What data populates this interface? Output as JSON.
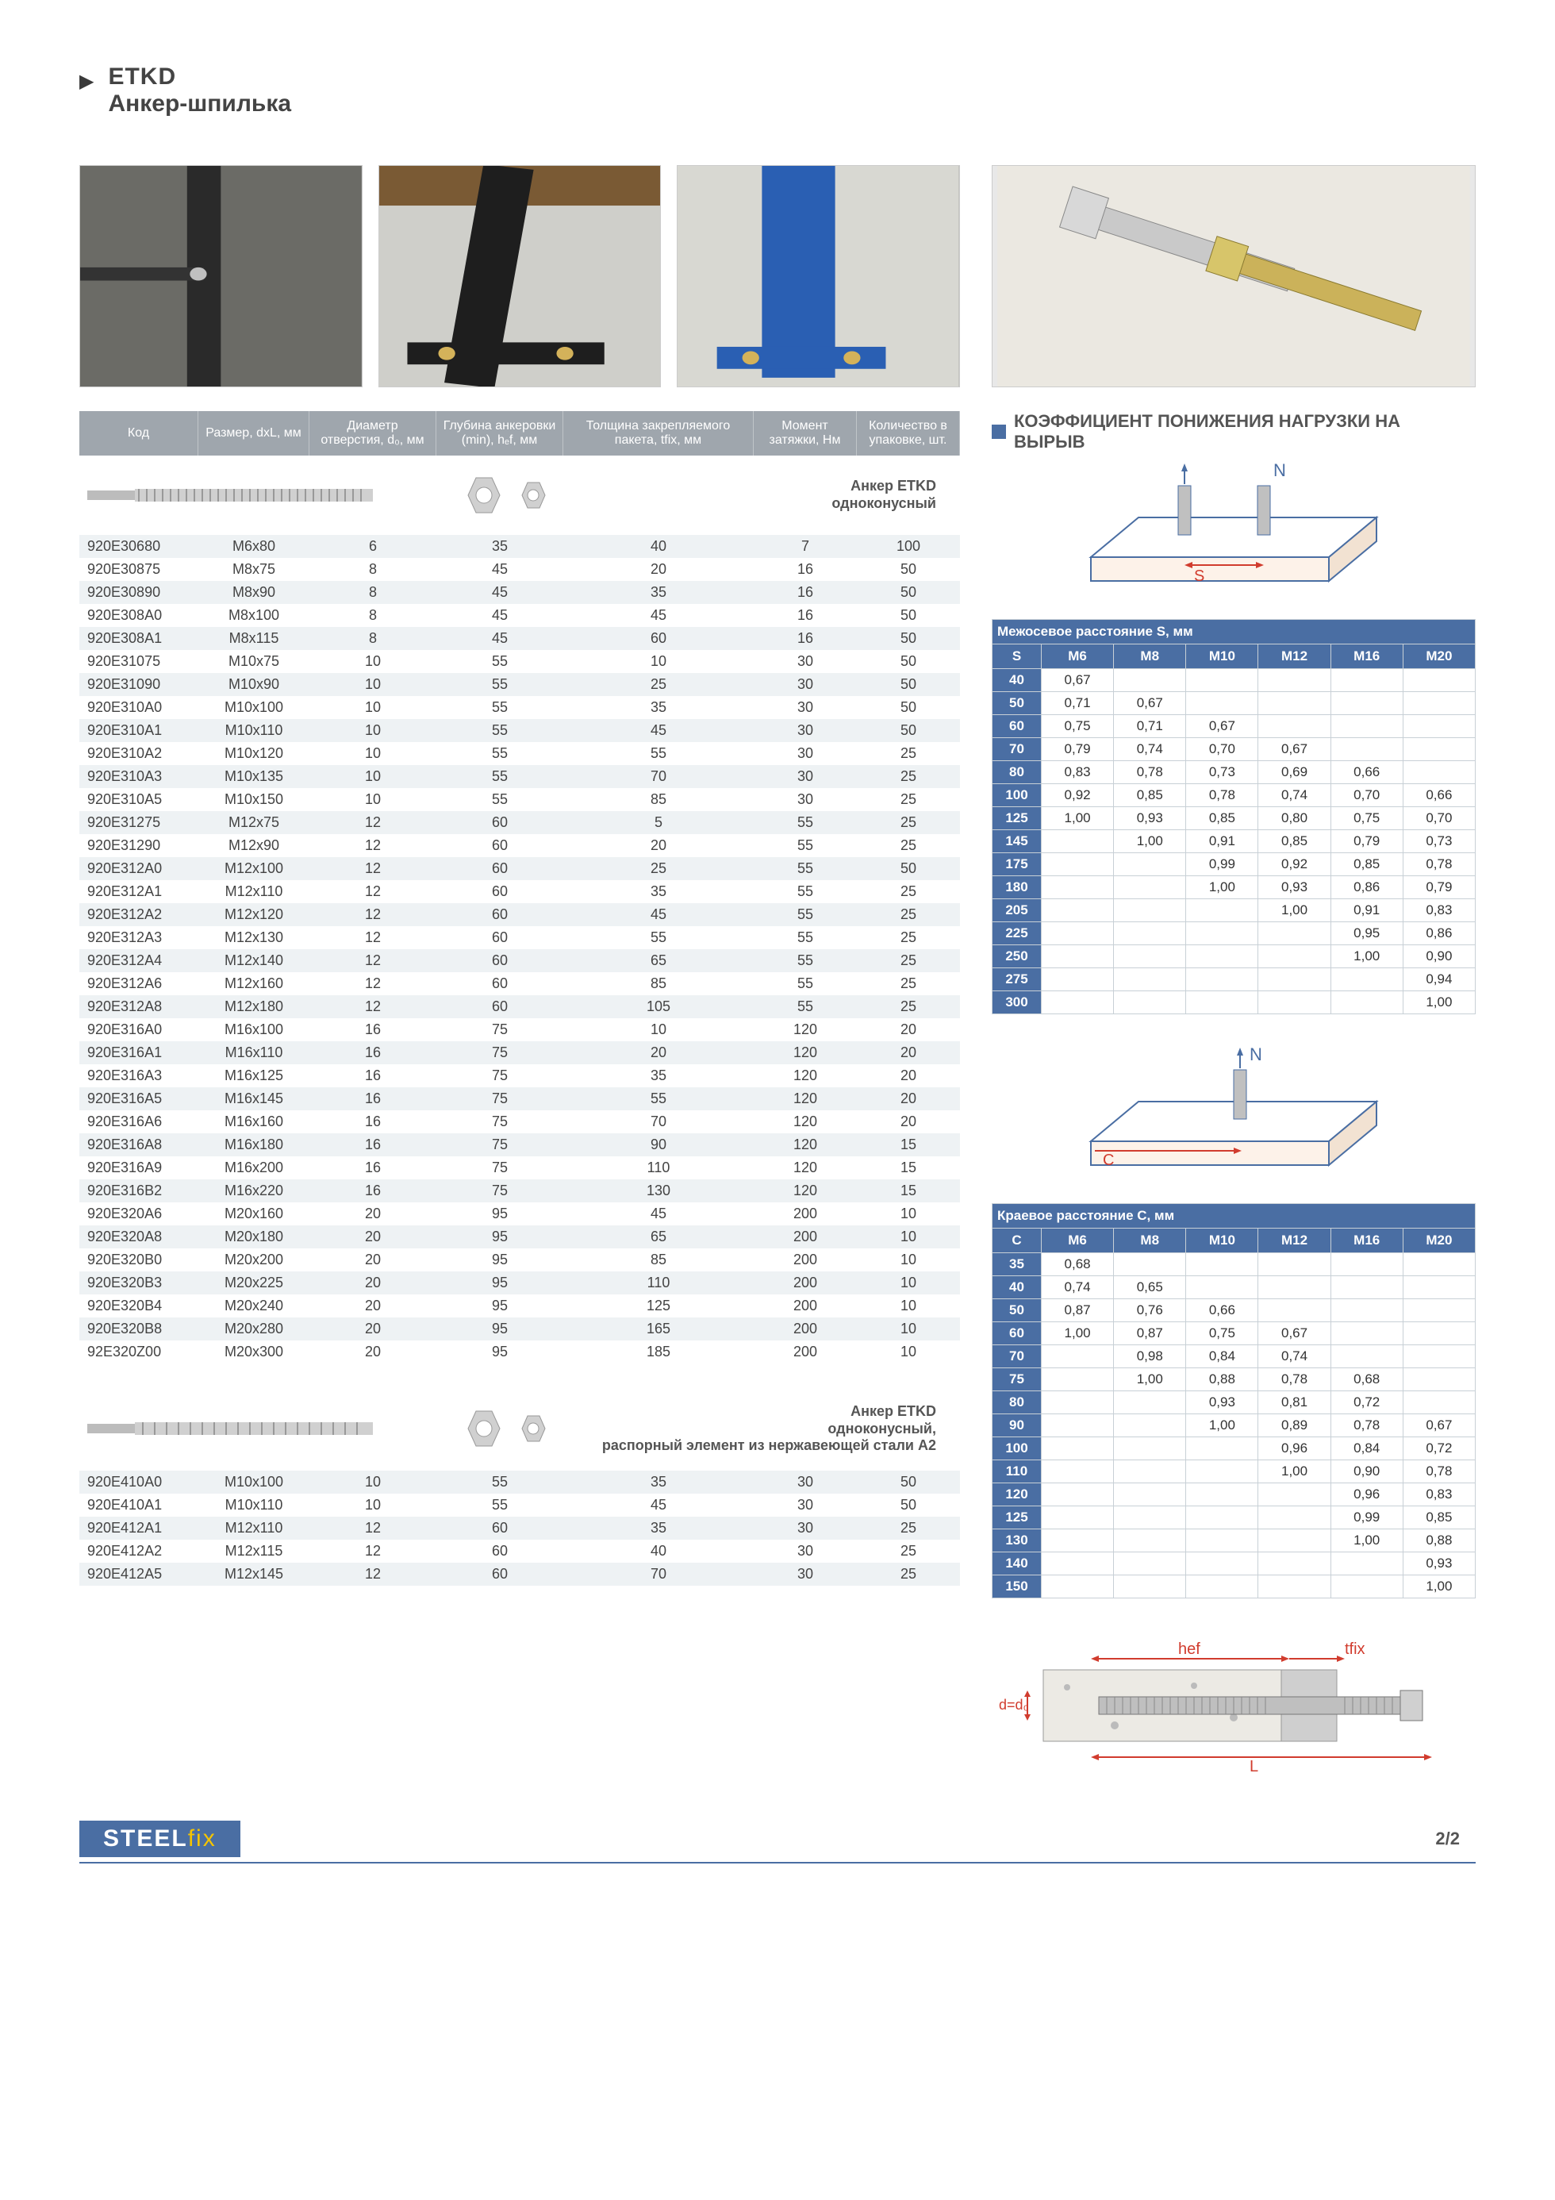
{
  "header": {
    "code": "ETKD",
    "name": "Анкер-шпилька"
  },
  "main_columns": [
    "Код",
    "Размер, dxL, мм",
    "Диаметр отверстия, d₀, мм",
    "Глубина анкеровки (min), hₑf, мм",
    "Толщина закрепляемого пакета, tfix, мм",
    "Момент затяжки, Нм",
    "Количество в упаковке, шт."
  ],
  "anchor_label_1": {
    "line1": "Анкер ETKD",
    "line2": "одноконусный"
  },
  "anchor_label_2": {
    "line1": "Анкер ETKD",
    "line2": "одноконусный,",
    "line3": "распорный элемент из нержавеющей стали A2"
  },
  "rows1": [
    [
      "920E30680",
      "M6x80",
      "6",
      "35",
      "40",
      "7",
      "100"
    ],
    [
      "920E30875",
      "M8x75",
      "8",
      "45",
      "20",
      "16",
      "50"
    ],
    [
      "920E30890",
      "M8x90",
      "8",
      "45",
      "35",
      "16",
      "50"
    ],
    [
      "920E308A0",
      "M8x100",
      "8",
      "45",
      "45",
      "16",
      "50"
    ],
    [
      "920E308A1",
      "M8x115",
      "8",
      "45",
      "60",
      "16",
      "50"
    ],
    [
      "920E31075",
      "M10x75",
      "10",
      "55",
      "10",
      "30",
      "50"
    ],
    [
      "920E31090",
      "M10x90",
      "10",
      "55",
      "25",
      "30",
      "50"
    ],
    [
      "920E310A0",
      "M10x100",
      "10",
      "55",
      "35",
      "30",
      "50"
    ],
    [
      "920E310A1",
      "M10x110",
      "10",
      "55",
      "45",
      "30",
      "50"
    ],
    [
      "920E310A2",
      "M10x120",
      "10",
      "55",
      "55",
      "30",
      "25"
    ],
    [
      "920E310A3",
      "M10x135",
      "10",
      "55",
      "70",
      "30",
      "25"
    ],
    [
      "920E310A5",
      "M10x150",
      "10",
      "55",
      "85",
      "30",
      "25"
    ],
    [
      "920E31275",
      "M12x75",
      "12",
      "60",
      "5",
      "55",
      "25"
    ],
    [
      "920E31290",
      "M12x90",
      "12",
      "60",
      "20",
      "55",
      "25"
    ],
    [
      "920E312A0",
      "M12x100",
      "12",
      "60",
      "25",
      "55",
      "50"
    ],
    [
      "920E312A1",
      "M12x110",
      "12",
      "60",
      "35",
      "55",
      "25"
    ],
    [
      "920E312A2",
      "M12x120",
      "12",
      "60",
      "45",
      "55",
      "25"
    ],
    [
      "920E312A3",
      "M12x130",
      "12",
      "60",
      "55",
      "55",
      "25"
    ],
    [
      "920E312A4",
      "M12x140",
      "12",
      "60",
      "65",
      "55",
      "25"
    ],
    [
      "920E312A6",
      "M12x160",
      "12",
      "60",
      "85",
      "55",
      "25"
    ],
    [
      "920E312A8",
      "M12x180",
      "12",
      "60",
      "105",
      "55",
      "25"
    ],
    [
      "920E316A0",
      "M16x100",
      "16",
      "75",
      "10",
      "120",
      "20"
    ],
    [
      "920E316A1",
      "M16x110",
      "16",
      "75",
      "20",
      "120",
      "20"
    ],
    [
      "920E316A3",
      "M16x125",
      "16",
      "75",
      "35",
      "120",
      "20"
    ],
    [
      "920E316A5",
      "M16x145",
      "16",
      "75",
      "55",
      "120",
      "20"
    ],
    [
      "920E316A6",
      "M16x160",
      "16",
      "75",
      "70",
      "120",
      "20"
    ],
    [
      "920E316A8",
      "M16x180",
      "16",
      "75",
      "90",
      "120",
      "15"
    ],
    [
      "920E316A9",
      "M16x200",
      "16",
      "75",
      "110",
      "120",
      "15"
    ],
    [
      "920E316B2",
      "M16x220",
      "16",
      "75",
      "130",
      "120",
      "15"
    ],
    [
      "920E320A6",
      "M20x160",
      "20",
      "95",
      "45",
      "200",
      "10"
    ],
    [
      "920E320A8",
      "M20x180",
      "20",
      "95",
      "65",
      "200",
      "10"
    ],
    [
      "920E320B0",
      "M20x200",
      "20",
      "95",
      "85",
      "200",
      "10"
    ],
    [
      "920E320B3",
      "M20x225",
      "20",
      "95",
      "110",
      "200",
      "10"
    ],
    [
      "920E320B4",
      "M20x240",
      "20",
      "95",
      "125",
      "200",
      "10"
    ],
    [
      "920E320B8",
      "M20x280",
      "20",
      "95",
      "165",
      "200",
      "10"
    ],
    [
      "92E320Z00",
      "M20x300",
      "20",
      "95",
      "185",
      "200",
      "10"
    ]
  ],
  "rows2": [
    [
      "920E410A0",
      "M10x100",
      "10",
      "55",
      "35",
      "30",
      "50"
    ],
    [
      "920E410A1",
      "M10x110",
      "10",
      "55",
      "45",
      "30",
      "50"
    ],
    [
      "920E412A1",
      "M12x110",
      "12",
      "60",
      "35",
      "30",
      "25"
    ],
    [
      "920E412A2",
      "M12x115",
      "12",
      "60",
      "40",
      "30",
      "25"
    ],
    [
      "920E412A5",
      "M12x145",
      "12",
      "60",
      "70",
      "30",
      "25"
    ]
  ],
  "coef_title": "КОЭФФИЦИЕНТ ПОНИЖЕНИЯ НАГРУЗКИ НА ВЫРЫВ",
  "tableS": {
    "caption": "Межосевое расстояние S, мм",
    "head": [
      "S",
      "M6",
      "M8",
      "M10",
      "M12",
      "M16",
      "M20"
    ],
    "rows": [
      [
        "40",
        "0,67",
        "",
        "",
        "",
        "",
        ""
      ],
      [
        "50",
        "0,71",
        "0,67",
        "",
        "",
        "",
        ""
      ],
      [
        "60",
        "0,75",
        "0,71",
        "0,67",
        "",
        "",
        ""
      ],
      [
        "70",
        "0,79",
        "0,74",
        "0,70",
        "0,67",
        "",
        ""
      ],
      [
        "80",
        "0,83",
        "0,78",
        "0,73",
        "0,69",
        "0,66",
        ""
      ],
      [
        "100",
        "0,92",
        "0,85",
        "0,78",
        "0,74",
        "0,70",
        "0,66"
      ],
      [
        "125",
        "1,00",
        "0,93",
        "0,85",
        "0,80",
        "0,75",
        "0,70"
      ],
      [
        "145",
        "",
        "1,00",
        "0,91",
        "0,85",
        "0,79",
        "0,73"
      ],
      [
        "175",
        "",
        "",
        "0,99",
        "0,92",
        "0,85",
        "0,78"
      ],
      [
        "180",
        "",
        "",
        "1,00",
        "0,93",
        "0,86",
        "0,79"
      ],
      [
        "205",
        "",
        "",
        "",
        "1,00",
        "0,91",
        "0,83"
      ],
      [
        "225",
        "",
        "",
        "",
        "",
        "0,95",
        "0,86"
      ],
      [
        "250",
        "",
        "",
        "",
        "",
        "1,00",
        "0,90"
      ],
      [
        "275",
        "",
        "",
        "",
        "",
        "",
        "0,94"
      ],
      [
        "300",
        "",
        "",
        "",
        "",
        "",
        "1,00"
      ]
    ]
  },
  "tableC": {
    "caption": "Краевое расстояние C, мм",
    "head": [
      "C",
      "M6",
      "M8",
      "M10",
      "M12",
      "M16",
      "M20"
    ],
    "rows": [
      [
        "35",
        "0,68",
        "",
        "",
        "",
        "",
        ""
      ],
      [
        "40",
        "0,74",
        "0,65",
        "",
        "",
        "",
        ""
      ],
      [
        "50",
        "0,87",
        "0,76",
        "0,66",
        "",
        "",
        ""
      ],
      [
        "60",
        "1,00",
        "0,87",
        "0,75",
        "0,67",
        "",
        ""
      ],
      [
        "70",
        "",
        "0,98",
        "0,84",
        "0,74",
        "",
        ""
      ],
      [
        "75",
        "",
        "1,00",
        "0,88",
        "0,78",
        "0,68",
        ""
      ],
      [
        "80",
        "",
        "",
        "0,93",
        "0,81",
        "0,72",
        ""
      ],
      [
        "90",
        "",
        "",
        "1,00",
        "0,89",
        "0,78",
        "0,67"
      ],
      [
        "100",
        "",
        "",
        "",
        "0,96",
        "0,84",
        "0,72"
      ],
      [
        "110",
        "",
        "",
        "",
        "1,00",
        "0,90",
        "0,78"
      ],
      [
        "120",
        "",
        "",
        "",
        "",
        "0,96",
        "0,83"
      ],
      [
        "125",
        "",
        "",
        "",
        "",
        "0,99",
        "0,85"
      ],
      [
        "130",
        "",
        "",
        "",
        "",
        "1,00",
        "0,88"
      ],
      [
        "140",
        "",
        "",
        "",
        "",
        "",
        "0,93"
      ],
      [
        "150",
        "",
        "",
        "",
        "",
        "",
        "1,00"
      ]
    ]
  },
  "dim_labels": {
    "hef": "hef",
    "tfix": "tfix",
    "d": "d=d₀",
    "L": "L"
  },
  "footer": {
    "logo1": "STEEL",
    "logo2": "fix",
    "page": "2/2"
  },
  "colors": {
    "header_bg": "#9fa6ad",
    "accent": "#4a6ea3",
    "stripe": "#eef2f4",
    "text": "#444444",
    "yellow": "#f4c400",
    "red": "#d13c2e"
  }
}
